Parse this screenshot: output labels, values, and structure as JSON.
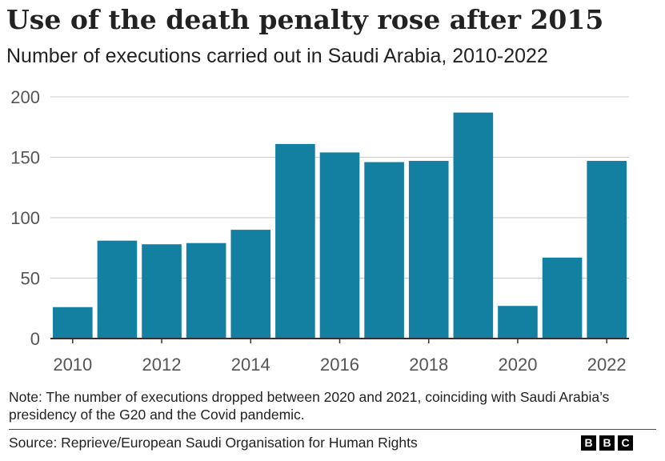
{
  "chart_data": {
    "type": "bar",
    "title": "Use of the death penalty rose after 2015",
    "subtitle": "Number of executions carried out in Saudi Arabia, 2010-2022",
    "xlabel": "",
    "ylabel": "",
    "categories": [
      "2010",
      "2011",
      "2012",
      "2013",
      "2014",
      "2015",
      "2016",
      "2017",
      "2018",
      "2019",
      "2020",
      "2021",
      "2022"
    ],
    "values": [
      26,
      81,
      78,
      79,
      90,
      161,
      154,
      146,
      147,
      187,
      27,
      67,
      147
    ],
    "x_tick_labels": [
      "2010",
      "2012",
      "2014",
      "2016",
      "2018",
      "2020",
      "2022"
    ],
    "y_ticks": [
      0,
      50,
      100,
      150,
      200
    ],
    "y_tick_labels": [
      "0",
      "50",
      "100",
      "150",
      "200"
    ],
    "ylim": [
      0,
      200
    ],
    "grid": true,
    "bar_color": "#1380a1",
    "gridline_color": "#cbcbcb",
    "baseline_color": "#333333"
  },
  "note": {
    "text": "Note: The number of executions dropped between 2020 and 2021, coinciding with Saudi Arabia’s presidency of the G20 and the Covid pandemic."
  },
  "source": {
    "text": "Source: Reprieve/European Saudi Organisation for Human Rights"
  },
  "logo": {
    "letters": [
      "B",
      "B",
      "C"
    ]
  }
}
